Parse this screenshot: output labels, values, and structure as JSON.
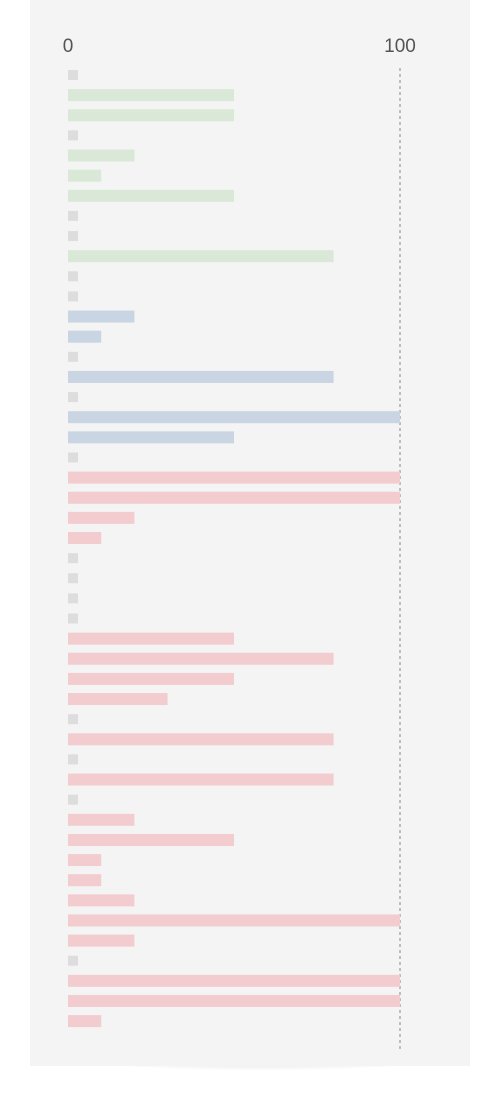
{
  "chart_data": {
    "type": "bar",
    "orientation": "horizontal",
    "xlim": [
      0,
      100
    ],
    "xticks": [
      0,
      100
    ],
    "zero_color": "#dddddd",
    "highlight": {
      "series": 1,
      "index": 3,
      "color": "#134c84"
    },
    "series": [
      {
        "color": "#d9e8d7",
        "values": [
          0,
          50,
          50,
          0,
          20,
          10,
          50,
          0,
          0,
          80,
          0,
          0,
          null,
          null,
          null,
          null,
          null,
          null,
          null,
          null,
          null,
          null,
          null,
          null,
          null,
          null,
          null,
          null,
          null,
          null,
          null,
          null,
          null,
          null,
          null,
          null,
          null,
          null,
          null,
          null,
          null,
          null,
          null,
          null,
          null,
          null,
          null,
          null
        ]
      },
      {
        "color": "#c9d5e2",
        "values": [
          null,
          null,
          null,
          null,
          null,
          null,
          null,
          null,
          null,
          null,
          null,
          null,
          20,
          10,
          0,
          80,
          0,
          100,
          50,
          0,
          null,
          null,
          null,
          null,
          null,
          null,
          null,
          null,
          null,
          null,
          null,
          null,
          null,
          null,
          null,
          null,
          null,
          null,
          null,
          null,
          null,
          null,
          null,
          null,
          null,
          null,
          null,
          null
        ]
      },
      {
        "color": "#f2cccf",
        "values": [
          null,
          null,
          null,
          null,
          null,
          null,
          null,
          null,
          null,
          null,
          null,
          null,
          null,
          null,
          null,
          null,
          null,
          null,
          null,
          null,
          100,
          100,
          20,
          10,
          0,
          0,
          0,
          0,
          50,
          80,
          50,
          30,
          0,
          80,
          0,
          80,
          0,
          20,
          50,
          10,
          10,
          20,
          100,
          20,
          0,
          100,
          100,
          10
        ]
      }
    ]
  }
}
